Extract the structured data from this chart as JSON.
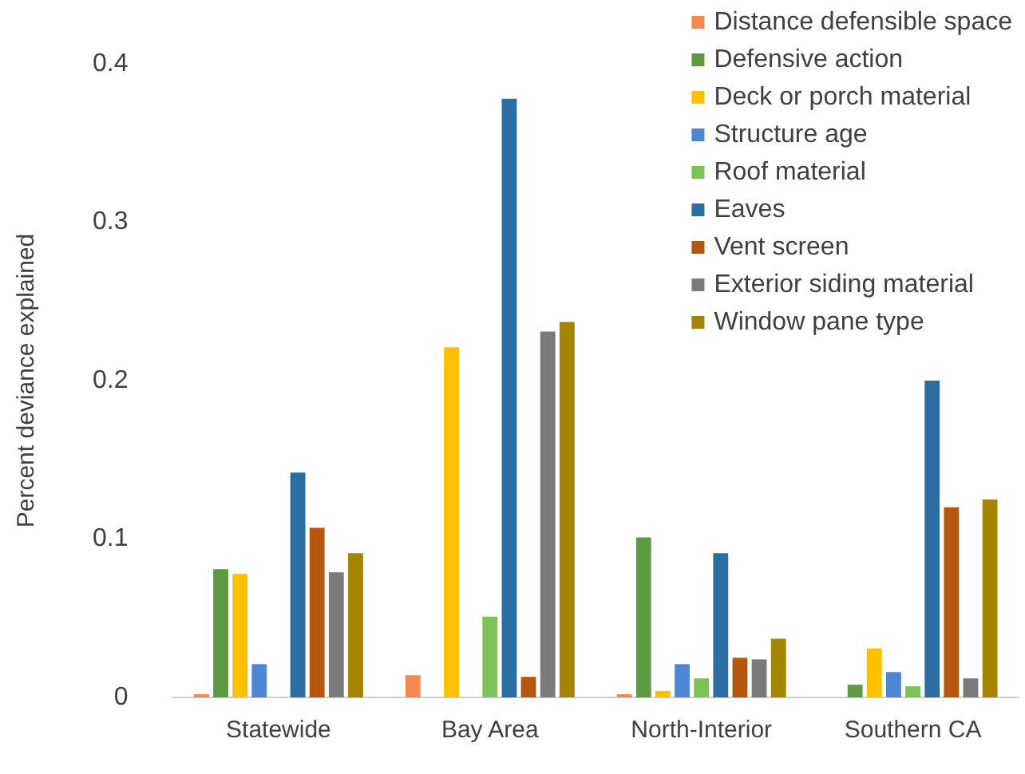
{
  "chart_data": {
    "type": "bar",
    "ylabel": "Percent deviance explained",
    "categories": [
      "Statewide",
      "Bay Area",
      "North-Interior",
      "Southern CA"
    ],
    "ylim": [
      0,
      0.4
    ],
    "yticks": [
      0,
      0.1,
      0.2,
      0.3,
      0.4
    ],
    "grid": false,
    "legend": "top right",
    "series": [
      {
        "name": "Distance defensible space",
        "color": "#f4894f",
        "values": [
          0.002,
          0.014,
          0.002,
          0
        ]
      },
      {
        "name": "Defensive action",
        "color": "#5e9a44",
        "values": [
          0.081,
          0,
          0.101,
          0.008
        ]
      },
      {
        "name": "Deck or porch material",
        "color": "#ffc000",
        "values": [
          0.078,
          0.221,
          0.004,
          0.031
        ]
      },
      {
        "name": "Structure age",
        "color": "#4f86d3",
        "values": [
          0.021,
          0,
          0.021,
          0.016
        ]
      },
      {
        "name": "Roof material",
        "color": "#7dc257",
        "values": [
          0,
          0.051,
          0.012,
          0.007
        ]
      },
      {
        "name": "Eaves",
        "color": "#2b6ea3",
        "values": [
          0.142,
          0.378,
          0.091,
          0.2
        ]
      },
      {
        "name": "Vent screen",
        "color": "#b5570f",
        "values": [
          0.107,
          0.013,
          0.025,
          0.12
        ]
      },
      {
        "name": "Exterior siding material",
        "color": "#7a7a7a",
        "values": [
          0.079,
          0.231,
          0.024,
          0.012
        ]
      },
      {
        "name": "Window pane type",
        "color": "#a58400",
        "values": [
          0.091,
          0.237,
          0.037,
          0.125
        ]
      }
    ]
  }
}
